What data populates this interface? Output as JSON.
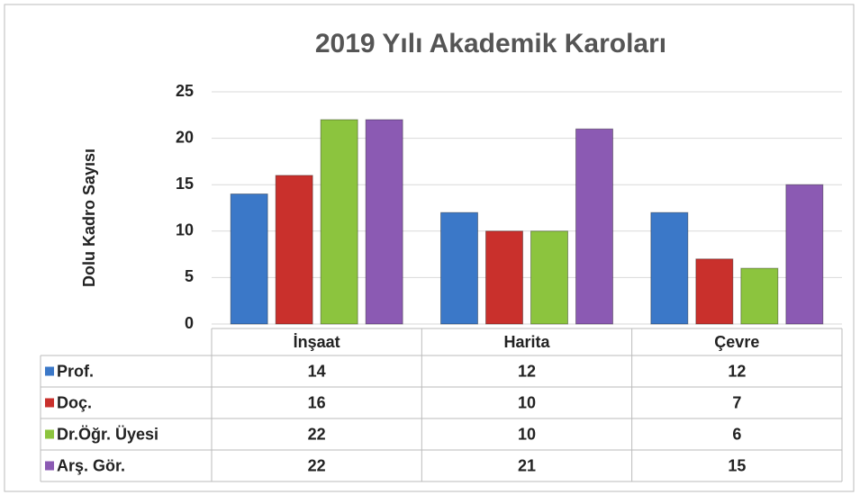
{
  "chart_data": {
    "type": "bar",
    "title": "2019 Yılı Akademik Karoları",
    "y_label": "Dolu Kadro Sayısı",
    "categories": [
      "İnşaat",
      "Harita",
      "Çevre"
    ],
    "series": [
      {
        "name": "Prof.",
        "color": "#3b78c8",
        "values": [
          14,
          12,
          12
        ]
      },
      {
        "name": "Doç.",
        "color": "#c9302c",
        "values": [
          16,
          10,
          7
        ]
      },
      {
        "name": "Dr.Öğr. Üyesi",
        "color": "#8cc43e",
        "values": [
          22,
          10,
          6
        ]
      },
      {
        "name": "Arş. Gör.",
        "color": "#8b5ab3",
        "values": [
          22,
          21,
          15
        ]
      }
    ],
    "ylim": [
      0,
      25
    ],
    "yticks": [
      0,
      5,
      10,
      15,
      20,
      25
    ],
    "grid": true
  }
}
